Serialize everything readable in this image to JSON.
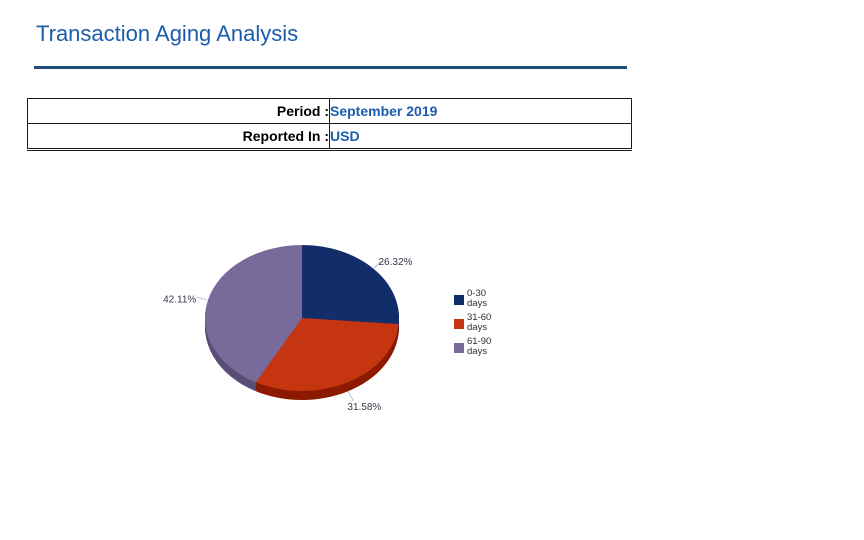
{
  "header": {
    "title": "Transaction Aging Analysis",
    "title_color": "#1b5cab",
    "rule_color": "#1f4e79"
  },
  "info_table": {
    "rows": [
      {
        "label": "Period :",
        "value": "September 2019"
      },
      {
        "label": "Reported In :",
        "value": "USD"
      }
    ],
    "value_color": "#1b5cab",
    "border_color": "#1a1a1a"
  },
  "chart_data": {
    "type": "pie",
    "three_d": true,
    "direction": "clockwise",
    "start_angle_deg": 0,
    "categories": [
      "0-30 days",
      "31-60 days",
      "61-90 days"
    ],
    "values": [
      26.32,
      31.58,
      42.11
    ],
    "labels": [
      "26.32%",
      "31.58%",
      "42.11%"
    ],
    "colors": [
      "#122e6a",
      "#c43510",
      "#786b9c"
    ],
    "side_colors": [
      "#0a1e47",
      "#8c1a00",
      "#5a4e77"
    ],
    "label_color": "#333a47",
    "leader_color": "#a9bcd6",
    "legend_position": "right",
    "legend": [
      {
        "range": "0-30",
        "unit": "days"
      },
      {
        "range": "31-60",
        "unit": "days"
      },
      {
        "range": "61-90",
        "unit": "days"
      }
    ]
  }
}
